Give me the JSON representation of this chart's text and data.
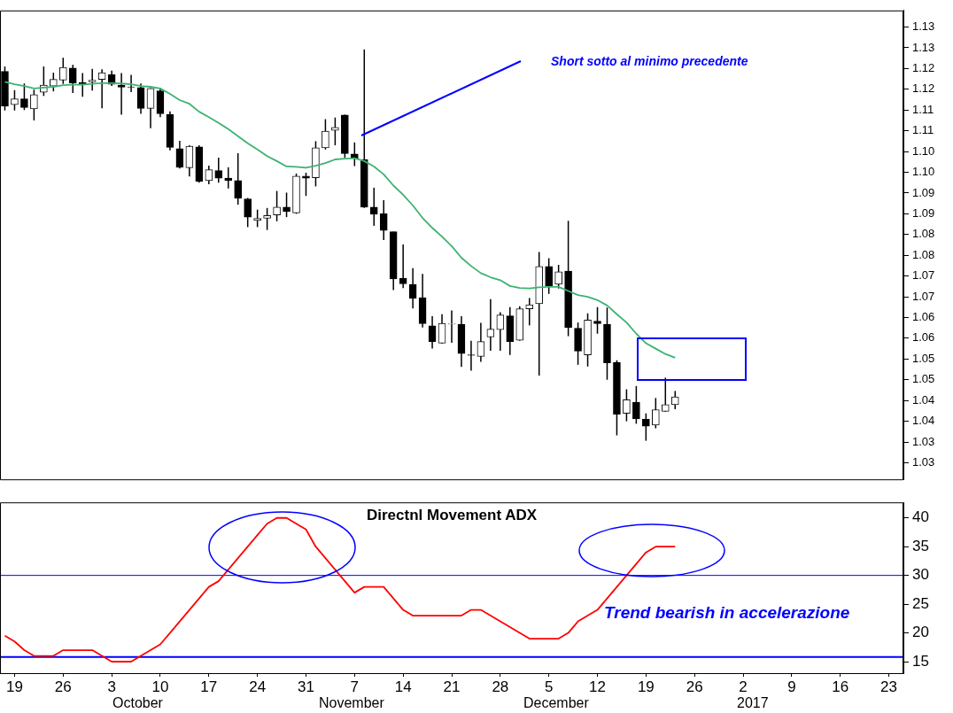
{
  "chart_data": [
    {
      "type": "candlestick",
      "categories": [
        null,
        "19",
        null,
        null,
        null,
        null,
        "26",
        null,
        null,
        null,
        null,
        "3",
        null,
        null,
        null,
        null,
        "10",
        null,
        null,
        null,
        null,
        "17",
        null,
        null,
        null,
        null,
        "24",
        null,
        null,
        null,
        null,
        "31",
        null,
        null,
        null,
        null,
        "7",
        null,
        null,
        null,
        null,
        "14",
        null,
        null,
        null,
        null,
        "21",
        null,
        null,
        null,
        null,
        "28",
        null,
        null,
        null,
        null,
        "5",
        null,
        null,
        null,
        null,
        "12",
        null,
        null,
        null,
        null,
        "19",
        null,
        null,
        null,
        null,
        "26",
        null,
        null,
        null,
        null,
        "2",
        null,
        null,
        null,
        null,
        "9",
        null,
        null,
        null,
        null,
        "16",
        null,
        null,
        null,
        null,
        "23",
        null
      ],
      "ohlc": [
        [
          1.1218,
          1.123,
          1.1124,
          1.1134
        ],
        [
          1.1138,
          1.1173,
          1.1124,
          1.1152
        ],
        [
          1.1152,
          1.1189,
          1.1125,
          1.1131
        ],
        [
          1.1128,
          1.1174,
          1.11,
          1.1162
        ],
        [
          1.1168,
          1.123,
          1.1159,
          1.1185
        ],
        [
          1.1183,
          1.1215,
          1.117,
          1.1199
        ],
        [
          1.1197,
          1.1251,
          1.1188,
          1.1228
        ],
        [
          1.1226,
          1.1234,
          1.1166,
          1.119
        ],
        [
          1.1191,
          1.1214,
          1.1157,
          1.1187
        ],
        [
          1.1193,
          1.1224,
          1.1172,
          1.1197
        ],
        [
          1.1199,
          1.1223,
          1.1129,
          1.1215
        ],
        [
          1.121,
          1.122,
          1.1183,
          1.1187
        ],
        [
          1.1185,
          1.1214,
          1.1114,
          1.118
        ],
        [
          1.1181,
          1.121,
          1.1168,
          1.118
        ],
        [
          1.1179,
          1.1189,
          1.1116,
          1.1129
        ],
        [
          1.1129,
          1.1178,
          1.1081,
          1.1177
        ],
        [
          1.1171,
          1.1178,
          1.1108,
          1.1116
        ],
        [
          1.1114,
          1.1122,
          1.1028,
          1.1035
        ],
        [
          1.1032,
          1.1051,
          1.0984,
          1.0987
        ],
        [
          1.0986,
          1.104,
          1.0965,
          1.1038
        ],
        [
          1.1036,
          1.104,
          1.095,
          1.0953
        ],
        [
          1.0955,
          1.0991,
          1.0946,
          1.0981
        ],
        [
          1.0979,
          1.101,
          1.095,
          1.0961
        ],
        [
          1.0961,
          1.0987,
          1.0936,
          1.0955
        ],
        [
          1.0955,
          1.1021,
          1.0897,
          1.0912
        ],
        [
          1.0911,
          1.0913,
          1.0843,
          1.0867
        ],
        [
          1.0859,
          1.0885,
          1.0843,
          1.0864
        ],
        [
          1.0864,
          1.0889,
          1.0836,
          1.0871
        ],
        [
          1.0872,
          1.093,
          1.0857,
          1.0891
        ],
        [
          1.0891,
          1.0926,
          1.0867,
          1.088
        ],
        [
          1.0877,
          1.0972,
          1.0875,
          1.0966
        ],
        [
          1.0966,
          1.0974,
          1.0918,
          1.0961
        ],
        [
          1.0962,
          1.105,
          1.0941,
          1.1034
        ],
        [
          1.1034,
          1.1103,
          1.103,
          1.1074
        ],
        [
          1.1076,
          1.1107,
          1.104,
          1.1083
        ],
        [
          1.1113,
          1.1114,
          1.101,
          1.102
        ],
        [
          1.1019,
          1.1047,
          1.099,
          1.1009
        ],
        [
          1.1006,
          1.1271,
          1.0889,
          1.0891
        ],
        [
          1.0891,
          1.0938,
          1.0846,
          1.0874
        ],
        [
          1.0875,
          1.0908,
          1.0812,
          1.0835
        ],
        [
          1.0832,
          1.0832,
          1.0691,
          1.0718
        ],
        [
          1.072,
          1.0801,
          1.0696,
          1.0706
        ],
        [
          1.0705,
          1.0744,
          1.0647,
          1.0671
        ],
        [
          1.0673,
          1.073,
          1.0601,
          1.061
        ],
        [
          1.0605,
          1.0628,
          1.055,
          1.0567
        ],
        [
          1.0563,
          1.0633,
          1.0562,
          1.0611
        ],
        [
          1.0609,
          1.0642,
          1.0564,
          1.061
        ],
        [
          1.0609,
          1.0628,
          1.0506,
          1.0538
        ],
        [
          1.0535,
          1.0569,
          1.0497,
          1.0534
        ],
        [
          1.0531,
          1.0612,
          1.0518,
          1.0567
        ],
        [
          1.0578,
          1.0669,
          1.0545,
          1.0597
        ],
        [
          1.0596,
          1.0638,
          1.0545,
          1.0631
        ],
        [
          1.0629,
          1.065,
          1.0535,
          1.0567
        ],
        [
          1.057,
          1.0652,
          1.0569,
          1.0646
        ],
        [
          1.0646,
          1.0672,
          1.0606,
          1.0656
        ],
        [
          1.0658,
          1.0783,
          1.0485,
          1.0748
        ],
        [
          1.0748,
          1.0768,
          1.0682,
          1.0701
        ],
        [
          1.0705,
          1.0752,
          1.0695,
          1.0735
        ],
        [
          1.0737,
          1.0858,
          1.058,
          1.0601
        ],
        [
          1.0599,
          1.0613,
          1.0511,
          1.0544
        ],
        [
          1.0535,
          1.0635,
          1.0507,
          1.0619
        ],
        [
          1.0616,
          1.065,
          1.0586,
          1.061
        ],
        [
          1.0609,
          1.0649,
          1.0475,
          1.0516
        ],
        [
          1.0517,
          1.0522,
          1.0341,
          1.0392
        ],
        [
          1.0394,
          1.0452,
          1.0375,
          1.0427
        ],
        [
          1.0421,
          1.046,
          1.0369,
          1.0381
        ],
        [
          1.038,
          1.0394,
          1.0328,
          1.0363
        ],
        [
          1.0366,
          1.0431,
          1.0358,
          1.0403
        ],
        [
          1.0399,
          1.048,
          1.0398,
          1.0415
        ],
        [
          1.0415,
          1.0448,
          1.0404,
          1.0434
        ],
        null,
        null,
        null,
        null,
        null,
        null,
        null,
        null,
        null,
        null,
        null,
        null,
        null,
        null,
        null,
        null,
        null,
        null,
        null,
        null,
        null,
        null,
        null
      ],
      "series": [
        {
          "type": "line",
          "color": "#3cb371",
          "values": [
            1.1193,
            1.1187,
            1.1183,
            1.1177,
            1.1179,
            1.1181,
            1.1185,
            1.1186,
            1.1186,
            1.1188,
            1.119,
            1.119,
            1.1189,
            1.1187,
            1.1183,
            1.1181,
            1.1177,
            1.1164,
            1.1149,
            1.114,
            1.1121,
            1.1108,
            1.1094,
            1.1079,
            1.1062,
            1.1045,
            1.103,
            1.1014,
            1.1002,
            1.0989,
            1.0988,
            1.0986,
            1.0991,
            1.0997,
            1.1006,
            1.1008,
            1.1009,
            1.1002,
            1.0989,
            1.097,
            1.0943,
            1.0921,
            1.0895,
            1.0865,
            1.0841,
            1.082,
            1.0797,
            1.0769,
            1.0749,
            1.0732,
            1.0722,
            1.0715,
            1.0701,
            1.0696,
            1.0695,
            1.0698,
            1.0699,
            1.0699,
            1.0689,
            1.0679,
            1.0675,
            1.0667,
            1.0654,
            1.0633,
            1.0613,
            1.0586,
            1.0563,
            1.055,
            1.0537,
            1.0528,
            null,
            null,
            null,
            null,
            null,
            null,
            null,
            null,
            null,
            null,
            null,
            null,
            null,
            null,
            null,
            null,
            null,
            null,
            null,
            null,
            null,
            null,
            null
          ]
        }
      ],
      "ylim": [
        1.0235,
        1.1365
      ],
      "yticks": [
        {
          "value": 1.0275,
          "label": "1.03"
        },
        {
          "value": 1.0325,
          "label": "1.03"
        },
        {
          "value": 1.0375,
          "label": "1.04"
        },
        {
          "value": 1.0425,
          "label": "1.04"
        },
        {
          "value": 1.0475,
          "label": "1.05"
        },
        {
          "value": 1.0525,
          "label": "1.05"
        },
        {
          "value": 1.0575,
          "label": "1.06"
        },
        {
          "value": 1.0625,
          "label": "1.06"
        },
        {
          "value": 1.0675,
          "label": "1.07"
        },
        {
          "value": 1.0725,
          "label": "1.07"
        },
        {
          "value": 1.0775,
          "label": "1.08"
        },
        {
          "value": 1.0825,
          "label": "1.08"
        },
        {
          "value": 1.0875,
          "label": "1.09"
        },
        {
          "value": 1.0925,
          "label": "1.09"
        },
        {
          "value": 1.0975,
          "label": "1.10"
        },
        {
          "value": 1.1025,
          "label": "1.10"
        },
        {
          "value": 1.1075,
          "label": "1.11"
        },
        {
          "value": 1.1125,
          "label": "1.11"
        },
        {
          "value": 1.1175,
          "label": "1.12"
        },
        {
          "value": 1.1225,
          "label": "1.12"
        },
        {
          "value": 1.1275,
          "label": "1.13"
        },
        {
          "value": 1.1325,
          "label": "1.13"
        }
      ],
      "tick_labels": "y",
      "annotations": [
        "Short sotto al minimo precedente"
      ]
    },
    {
      "type": "line",
      "title": "Directnl Movement ADX",
      "categories": [
        null,
        "19",
        null,
        null,
        null,
        null,
        "26",
        null,
        null,
        null,
        null,
        "3",
        null,
        null,
        null,
        null,
        "10",
        null,
        null,
        null,
        null,
        "17",
        null,
        null,
        null,
        null,
        "24",
        null,
        null,
        null,
        null,
        "31",
        null,
        null,
        null,
        null,
        "7",
        null,
        null,
        null,
        null,
        "14",
        null,
        null,
        null,
        null,
        "21",
        null,
        null,
        null,
        null,
        "28",
        null,
        null,
        null,
        null,
        "5",
        null,
        null,
        null,
        null,
        "12",
        null,
        null,
        null,
        null,
        "19",
        null,
        null,
        null,
        null,
        "26",
        null,
        null,
        null,
        null,
        "2",
        null,
        null,
        null,
        null,
        "9",
        null,
        null,
        null,
        null,
        "16",
        null,
        null,
        null,
        null,
        "23",
        null
      ],
      "series": [
        {
          "color": "#ff0000",
          "values": [
            19.5,
            18.5,
            17,
            16,
            16,
            16,
            17,
            17,
            17,
            17,
            16,
            15,
            15,
            15,
            16,
            17,
            18,
            20,
            22,
            24,
            26,
            28,
            29,
            31,
            33,
            35,
            37,
            39,
            40,
            40,
            39,
            38,
            35,
            33,
            31,
            29,
            27,
            28,
            28,
            28,
            26,
            24,
            23,
            23,
            23,
            23,
            23,
            23,
            24,
            24,
            23,
            22,
            21,
            20,
            19,
            19,
            19,
            19,
            20,
            22,
            23,
            24,
            26,
            28,
            30,
            32,
            34,
            35,
            35,
            35,
            null,
            null,
            null,
            null,
            null,
            null,
            null,
            null,
            null,
            null,
            null,
            null,
            null,
            null,
            null,
            null,
            null,
            null,
            null,
            null,
            null,
            null,
            null
          ]
        }
      ],
      "ylim": [
        13,
        42.7
      ],
      "yticks": [
        15,
        20,
        25,
        30,
        35,
        40
      ],
      "ref_lines": [
        {
          "axis": "y",
          "value": 30,
          "color": "#0000ff"
        },
        {
          "axis": "y",
          "value": 15.8,
          "color": "#0000ff"
        }
      ],
      "annotations": [
        "October",
        "November",
        "December",
        "2017",
        "Trend bearish in accelerazione"
      ]
    }
  ]
}
